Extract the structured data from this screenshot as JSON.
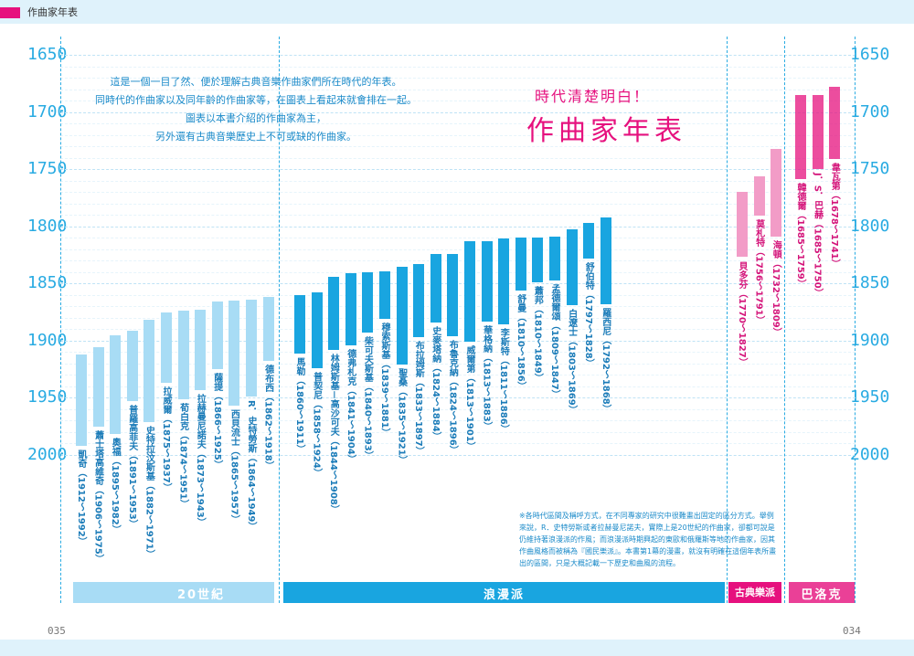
{
  "header": {
    "label": "作曲家年表"
  },
  "years": [
    "1650",
    "1700",
    "1750",
    "1800",
    "1850",
    "1900",
    "1950",
    "2000"
  ],
  "intro_lines": [
    "這是一個一目了然、便於理解古典音樂作曲家們所在時代的年表。",
    "同時代的作曲家以及同年齡的作曲家等，在圖表上看起來就會排在一起。",
    "圖表以本書介紹的作曲家為主，",
    "另外還有古典音樂歷史上不可或缺的作曲家。"
  ],
  "subtitle": "時代清楚明白！",
  "title": "作曲家年表",
  "note": "※各時代區間及稱呼方式，在不同專家的研究中很難畫出固定的區分方式。舉例來說，R．史特勞斯或者拉赫曼尼諾夫，實際上是20世紀的作曲家，卻都可說是仍維持著浪漫派的作風；而浪漫派時期興起的東歐和俄羅斯等地的作曲家，因其作曲風格而被稱為『國民樂派』。本書第1幕的漫畫，就沒有明確在這個年表所畫出的區間，只是大概記載一下歷史和曲風的流程。",
  "eras": [
    {
      "label": "20世紀"
    },
    {
      "label": "浪漫派"
    },
    {
      "label": "古典樂派"
    },
    {
      "label": "巴洛克"
    }
  ],
  "composers": [
    {
      "name": "凱奇",
      "birth": 1912,
      "death": 1992,
      "era": "c20"
    },
    {
      "name": "蕭士塔高維奇",
      "birth": 1906,
      "death": 1975,
      "era": "c20"
    },
    {
      "name": "奧福",
      "birth": 1895,
      "death": 1982,
      "era": "c20"
    },
    {
      "name": "普羅高菲夫",
      "birth": 1891,
      "death": 1953,
      "era": "c20"
    },
    {
      "name": "史特拉汶斯基",
      "birth": 1882,
      "death": 1971,
      "era": "c20"
    },
    {
      "name": "拉威爾",
      "birth": 1875,
      "death": 1937,
      "era": "c20"
    },
    {
      "name": "荀白克",
      "birth": 1874,
      "death": 1951,
      "era": "c20"
    },
    {
      "name": "拉赫曼尼諾夫",
      "birth": 1873,
      "death": 1943,
      "era": "c20"
    },
    {
      "name": "薩提",
      "birth": 1866,
      "death": 1925,
      "era": "c20"
    },
    {
      "name": "西貝流士",
      "birth": 1865,
      "death": 1957,
      "era": "c20"
    },
    {
      "name": "R．史特勞斯",
      "birth": 1864,
      "death": 1949,
      "era": "c20"
    },
    {
      "name": "德布西",
      "birth": 1862,
      "death": 1918,
      "era": "c20"
    },
    {
      "name": "馬勒",
      "birth": 1860,
      "death": 1911,
      "era": "rom"
    },
    {
      "name": "普契尼",
      "birth": 1858,
      "death": 1924,
      "era": "rom"
    },
    {
      "name": "林姆斯基－高沙可夫",
      "birth": 1844,
      "death": 1908,
      "era": "rom"
    },
    {
      "name": "德弗札克",
      "birth": 1841,
      "death": 1904,
      "era": "rom"
    },
    {
      "name": "柴可夫斯基",
      "birth": 1840,
      "death": 1893,
      "era": "rom"
    },
    {
      "name": "穆索斯基",
      "birth": 1839,
      "death": 1881,
      "era": "rom"
    },
    {
      "name": "聖桑",
      "birth": 1835,
      "death": 1921,
      "era": "rom"
    },
    {
      "name": "布拉姆斯",
      "birth": 1833,
      "death": 1897,
      "era": "rom"
    },
    {
      "name": "史麥塔納",
      "birth": 1824,
      "death": 1884,
      "era": "rom"
    },
    {
      "name": "布魯克納",
      "birth": 1824,
      "death": 1896,
      "era": "rom"
    },
    {
      "name": "威爾第",
      "birth": 1813,
      "death": 1901,
      "era": "rom"
    },
    {
      "name": "華格納",
      "birth": 1813,
      "death": 1883,
      "era": "rom"
    },
    {
      "name": "李斯特",
      "birth": 1811,
      "death": 1886,
      "era": "rom"
    },
    {
      "name": "舒曼",
      "birth": 1810,
      "death": 1856,
      "era": "rom"
    },
    {
      "name": "蕭邦",
      "birth": 1810,
      "death": 1849,
      "era": "rom"
    },
    {
      "name": "孟德爾頌",
      "birth": 1809,
      "death": 1847,
      "era": "rom"
    },
    {
      "name": "白遼士",
      "birth": 1803,
      "death": 1869,
      "era": "rom"
    },
    {
      "name": "舒伯特",
      "birth": 1797,
      "death": 1828,
      "era": "rom"
    },
    {
      "name": "羅西尼",
      "birth": 1792,
      "death": 1868,
      "era": "rom"
    },
    {
      "name": "貝多芬",
      "birth": 1770,
      "death": 1827,
      "era": "cls"
    },
    {
      "name": "莫札特",
      "birth": 1756,
      "death": 1791,
      "era": "cls"
    },
    {
      "name": "海頓",
      "birth": 1732,
      "death": 1809,
      "era": "cls"
    },
    {
      "name": "韓德爾",
      "birth": 1685,
      "death": 1759,
      "era": "bq"
    },
    {
      "name": "J．S．巴赫",
      "birth": 1685,
      "death": 1750,
      "era": "bq"
    },
    {
      "name": "韋瓦第",
      "birth": 1678,
      "death": 1741,
      "era": "bq"
    }
  ],
  "page_numbers": {
    "left": "035",
    "right": "034"
  },
  "colors": {
    "accent": "#e6117e",
    "blue": "#29abe2",
    "romantic": "#19a5e0",
    "modern": "#a8dcf5",
    "classical": "#f29cc7",
    "baroque": "#e6117e"
  }
}
